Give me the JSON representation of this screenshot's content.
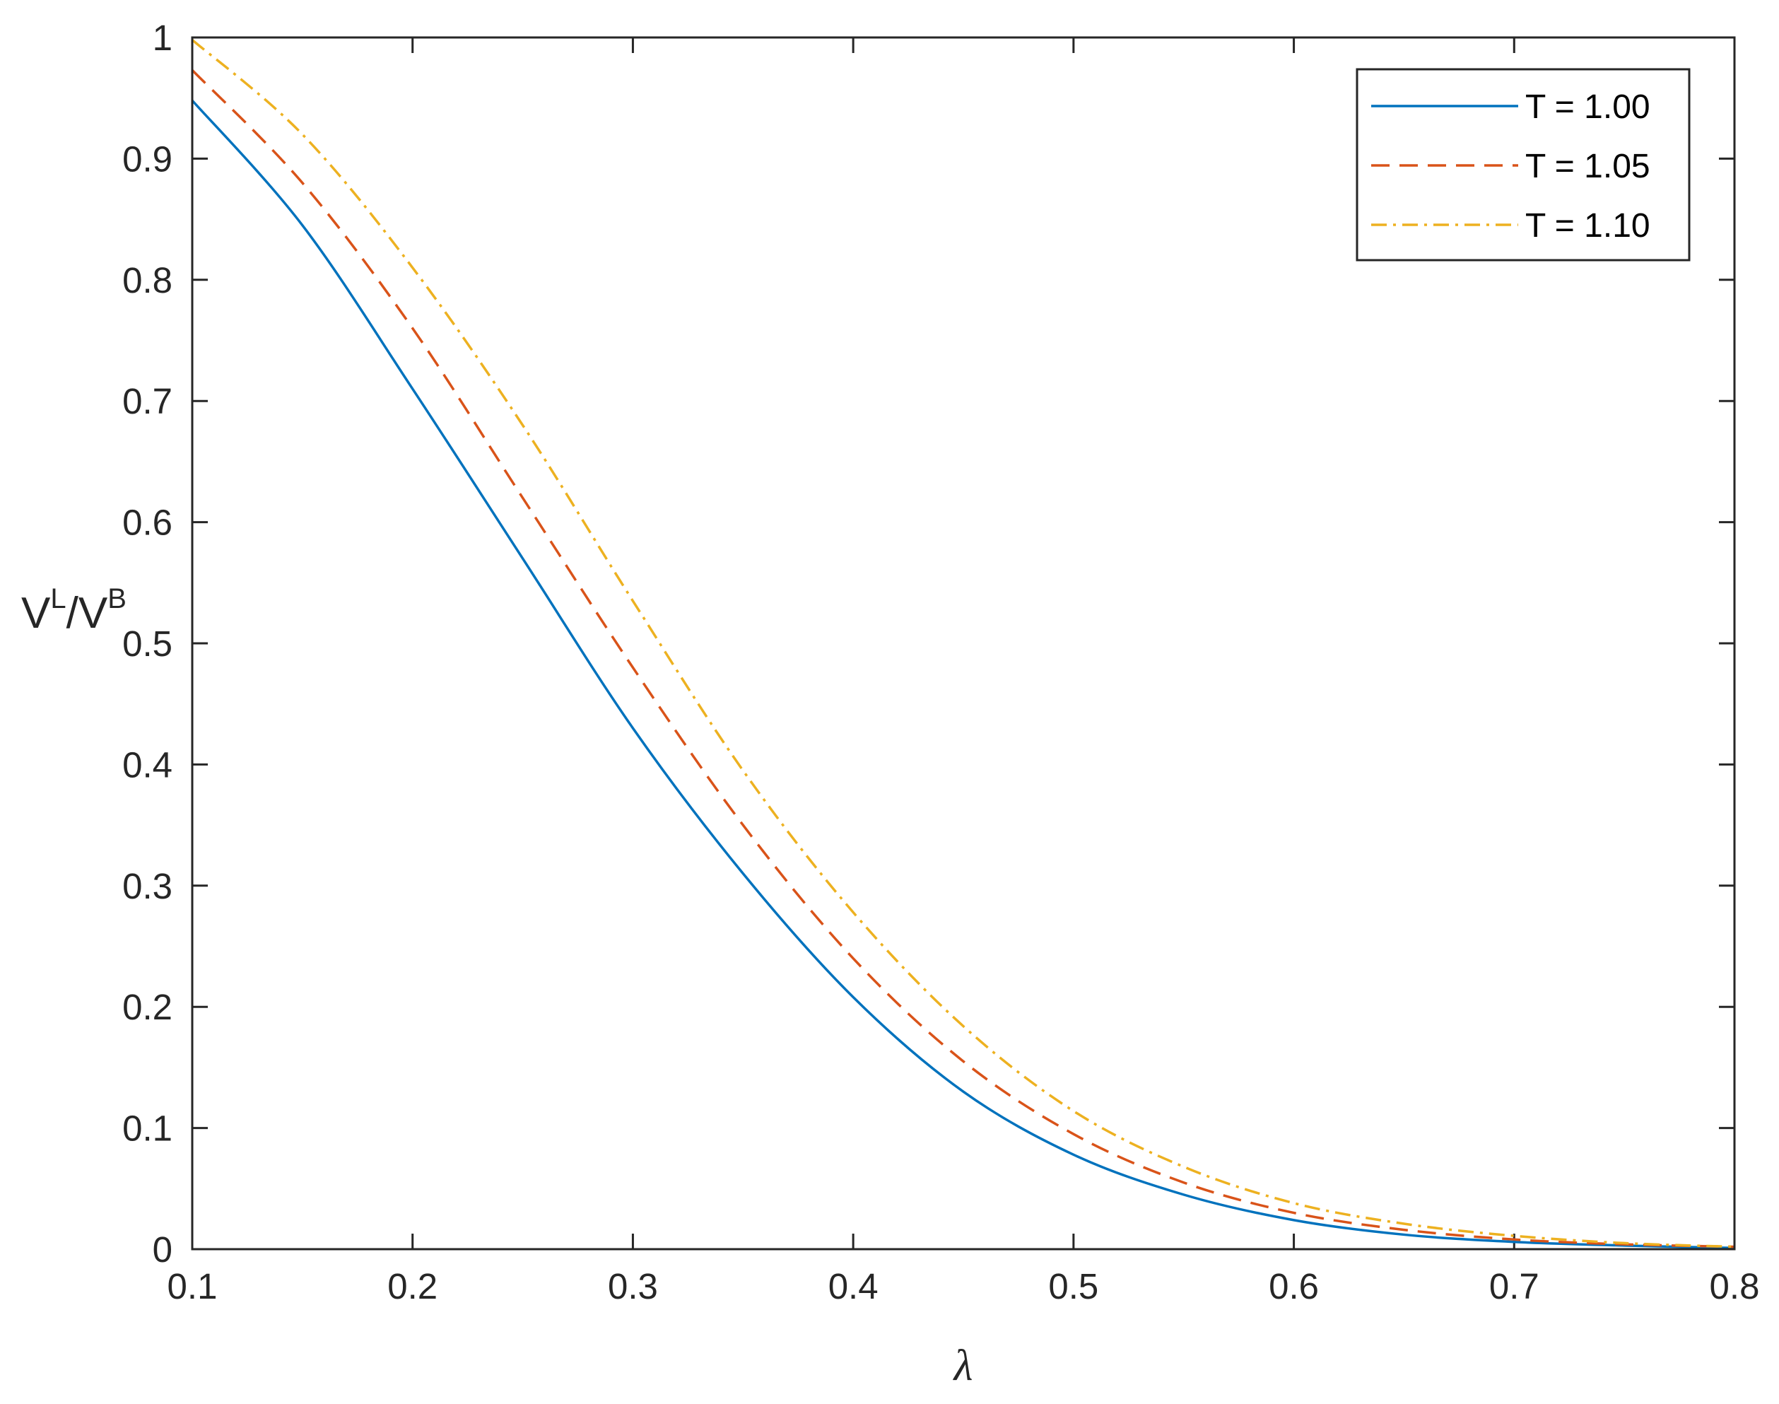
{
  "chart_data": {
    "type": "line",
    "title": "",
    "xlabel": "λ",
    "ylabel": {
      "base1": "V",
      "sup1": "L",
      "slash": "/",
      "base2": "V",
      "sup2": "B"
    },
    "xlim": [
      0.1,
      0.8
    ],
    "ylim": [
      0,
      1
    ],
    "xticks": [
      "0.1",
      "0.2",
      "0.3",
      "0.4",
      "0.5",
      "0.6",
      "0.7",
      "0.8"
    ],
    "yticks": [
      "0",
      "0.1",
      "0.2",
      "0.3",
      "0.4",
      "0.5",
      "0.6",
      "0.7",
      "0.8",
      "0.9",
      "1"
    ],
    "grid": false,
    "legend_position": "top-right",
    "x": [
      0.1,
      0.15,
      0.2,
      0.25,
      0.3,
      0.35,
      0.4,
      0.45,
      0.5,
      0.55,
      0.6,
      0.65,
      0.7,
      0.75,
      0.8
    ],
    "series": [
      {
        "name": "T = 1.00",
        "color": "#0072BD",
        "dash": "solid",
        "values": [
          0.948,
          0.845,
          0.71,
          0.57,
          0.43,
          0.31,
          0.208,
          0.13,
          0.078,
          0.045,
          0.024,
          0.012,
          0.006,
          0.003,
          0.001
        ]
      },
      {
        "name": "T = 1.05",
        "color": "#D95319",
        "dash": "dashed",
        "values": [
          0.973,
          0.88,
          0.76,
          0.62,
          0.48,
          0.35,
          0.24,
          0.155,
          0.095,
          0.055,
          0.03,
          0.016,
          0.008,
          0.004,
          0.002
        ]
      },
      {
        "name": "T = 1.10",
        "color": "#EDB120",
        "dash": "dashdot",
        "values": [
          0.998,
          0.92,
          0.81,
          0.68,
          0.535,
          0.395,
          0.278,
          0.184,
          0.114,
          0.068,
          0.038,
          0.021,
          0.011,
          0.005,
          0.002
        ]
      }
    ]
  }
}
